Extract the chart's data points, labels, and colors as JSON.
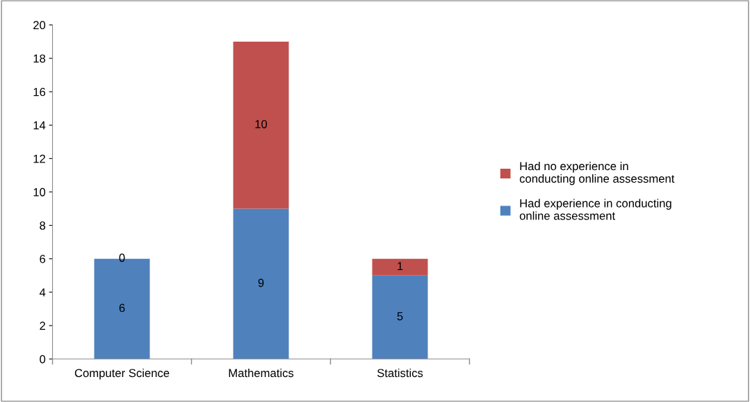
{
  "chart_data": {
    "type": "bar",
    "stacked": true,
    "categories": [
      "Computer Science",
      "Mathematics",
      "Statistics"
    ],
    "series": [
      {
        "name": "Had experience in conducting\nonline assessment",
        "color": "#4f81bd",
        "values": [
          6,
          9,
          5
        ]
      },
      {
        "name": "Had no experience in\nconducting online assessment",
        "color": "#c0504d",
        "values": [
          0,
          10,
          1
        ]
      }
    ],
    "ylim": [
      0,
      20
    ],
    "yticks": [
      0,
      2,
      4,
      6,
      8,
      10,
      12,
      14,
      16,
      18,
      20
    ],
    "grid": false,
    "legend": "right",
    "data_labels": true
  }
}
